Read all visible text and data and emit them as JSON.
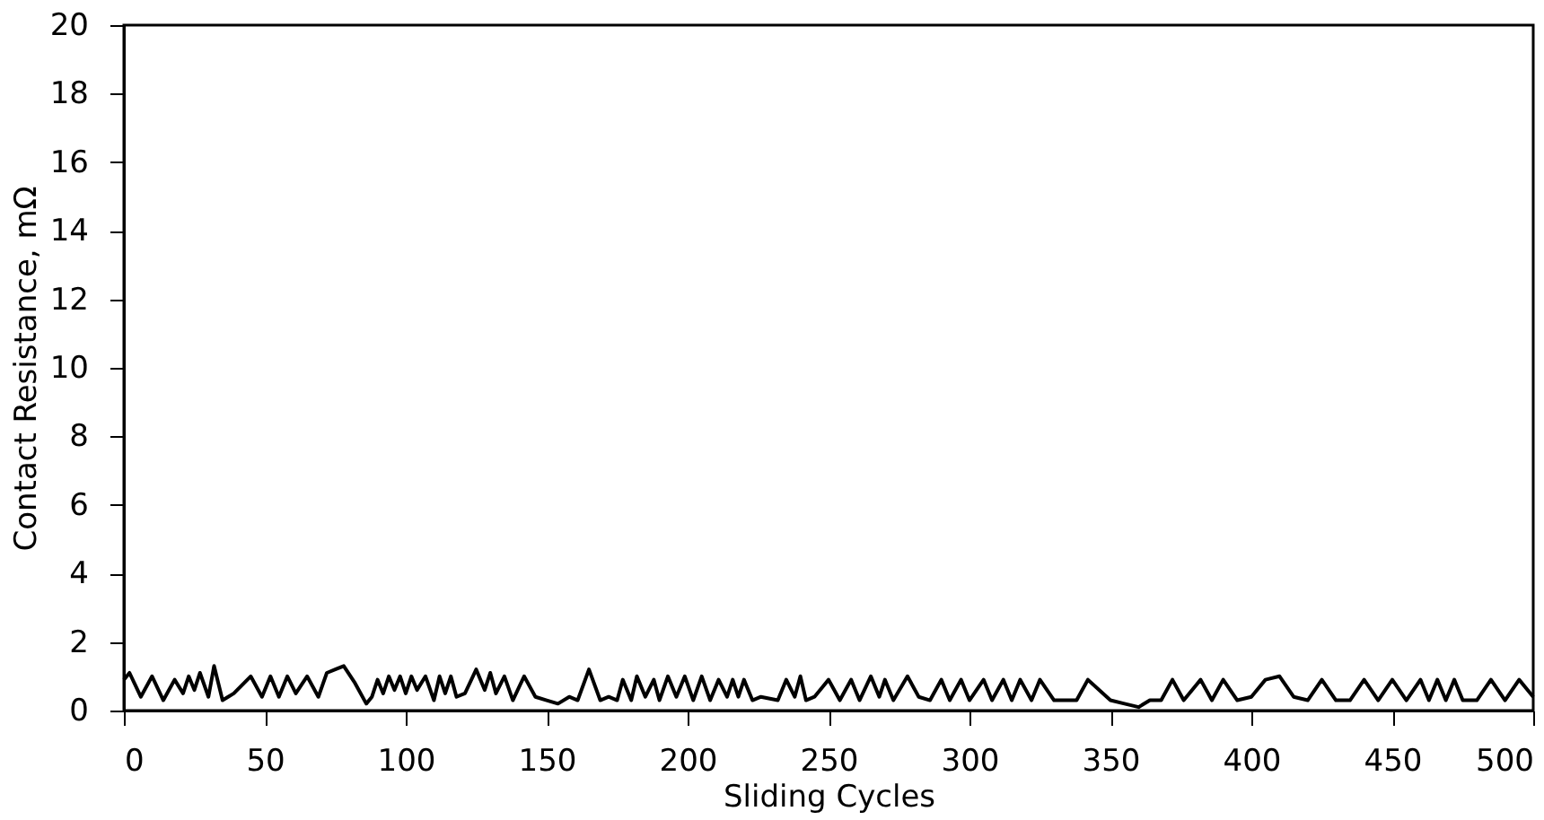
{
  "chart_data": {
    "type": "line",
    "xlabel": "Sliding Cycles",
    "ylabel": "Contact Resistance, mΩ",
    "xlim": [
      0,
      500
    ],
    "ylim": [
      0,
      20
    ],
    "xticks": [
      0,
      50,
      100,
      150,
      200,
      250,
      300,
      350,
      400,
      450,
      500
    ],
    "yticks": [
      0,
      2,
      4,
      6,
      8,
      10,
      12,
      14,
      16,
      18,
      20
    ],
    "grid": false,
    "marker": "none",
    "line_style": "solid",
    "series": [
      {
        "color": "#000000",
        "x": [
          0,
          2,
          6,
          10,
          14,
          18,
          21,
          23,
          25,
          27,
          30,
          32,
          35,
          39,
          45,
          49,
          52,
          55,
          58,
          61,
          65,
          69,
          72,
          75,
          78,
          82,
          86,
          88,
          90,
          92,
          94,
          96,
          98,
          100,
          102,
          104,
          107,
          110,
          112,
          114,
          116,
          118,
          121,
          125,
          128,
          130,
          132,
          135,
          138,
          142,
          146,
          150,
          154,
          158,
          161,
          165,
          169,
          172,
          175,
          177,
          180,
          182,
          185,
          188,
          190,
          193,
          196,
          199,
          202,
          205,
          208,
          211,
          214,
          216,
          218,
          220,
          223,
          226,
          232,
          235,
          238,
          240,
          242,
          245,
          250,
          254,
          258,
          261,
          265,
          268,
          270,
          273,
          278,
          282,
          286,
          290,
          293,
          297,
          300,
          305,
          308,
          312,
          315,
          318,
          322,
          325,
          330,
          338,
          342,
          350,
          355,
          360,
          364,
          368,
          372,
          376,
          382,
          386,
          390,
          395,
          400,
          405,
          410,
          415,
          420,
          425,
          430,
          435,
          440,
          445,
          450,
          455,
          460,
          463,
          466,
          469,
          472,
          475,
          480,
          485,
          490,
          495,
          500
        ],
        "values": [
          0.9,
          1.1,
          0.4,
          1.0,
          0.3,
          0.9,
          0.5,
          1.0,
          0.6,
          1.1,
          0.4,
          1.3,
          0.3,
          0.5,
          1.0,
          0.4,
          1.0,
          0.4,
          1.0,
          0.5,
          1.0,
          0.4,
          1.1,
          1.2,
          1.3,
          0.8,
          0.2,
          0.4,
          0.9,
          0.5,
          1.0,
          0.6,
          1.0,
          0.5,
          1.0,
          0.6,
          1.0,
          0.3,
          1.0,
          0.5,
          1.0,
          0.4,
          0.5,
          1.2,
          0.6,
          1.1,
          0.5,
          1.0,
          0.3,
          1.0,
          0.4,
          0.3,
          0.2,
          0.4,
          0.3,
          1.2,
          0.3,
          0.4,
          0.3,
          0.9,
          0.3,
          1.0,
          0.4,
          0.9,
          0.3,
          1.0,
          0.4,
          1.0,
          0.3,
          1.0,
          0.3,
          0.9,
          0.4,
          0.9,
          0.4,
          0.9,
          0.3,
          0.4,
          0.3,
          0.9,
          0.4,
          1.0,
          0.3,
          0.4,
          0.9,
          0.3,
          0.9,
          0.3,
          1.0,
          0.4,
          0.9,
          0.3,
          1.0,
          0.4,
          0.3,
          0.9,
          0.3,
          0.9,
          0.3,
          0.9,
          0.3,
          0.9,
          0.3,
          0.9,
          0.3,
          0.9,
          0.3,
          0.3,
          0.9,
          0.3,
          0.2,
          0.1,
          0.3,
          0.3,
          0.9,
          0.3,
          0.9,
          0.3,
          0.9,
          0.3,
          0.4,
          0.9,
          1.0,
          0.4,
          0.3,
          0.9,
          0.3,
          0.3,
          0.9,
          0.3,
          0.9,
          0.3,
          0.9,
          0.3,
          0.9,
          0.3,
          0.9,
          0.3,
          0.3,
          0.9,
          0.3,
          0.9,
          0.4
        ]
      }
    ]
  }
}
